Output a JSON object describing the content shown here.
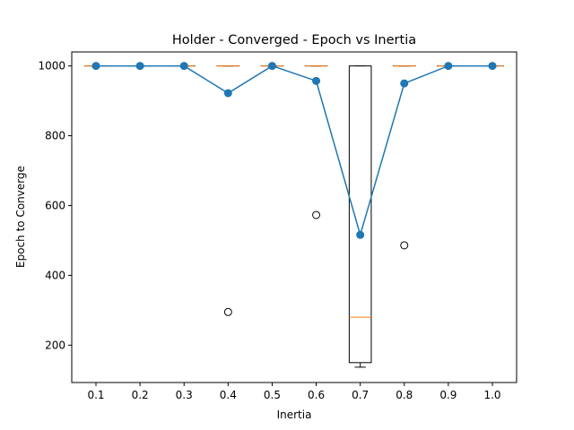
{
  "chart_data": {
    "type": "box",
    "title": "Holder - Converged - Epoch vs Inertia",
    "xlabel": "Inertia",
    "ylabel": "Epoch to Converge",
    "categories": [
      "0.1",
      "0.2",
      "0.3",
      "0.4",
      "0.5",
      "0.6",
      "0.7",
      "0.8",
      "0.9",
      "1.0"
    ],
    "ylim": [
      93,
      1040
    ],
    "yticks": [
      200,
      400,
      600,
      800,
      1000
    ],
    "grid": false,
    "colors": {
      "line": "#1f77b4",
      "median": "#ff7f0e",
      "box": "#000000"
    },
    "boxes": [
      {
        "q1": 1000,
        "median": 1000,
        "q3": 1000,
        "whislo": 1000,
        "whishi": 1000,
        "fliers": []
      },
      {
        "q1": 1000,
        "median": 1000,
        "q3": 1000,
        "whislo": 1000,
        "whishi": 1000,
        "fliers": []
      },
      {
        "q1": 1000,
        "median": 1000,
        "q3": 1000,
        "whislo": 1000,
        "whishi": 1000,
        "fliers": []
      },
      {
        "q1": 1000,
        "median": 1000,
        "q3": 1000,
        "whislo": 1000,
        "whishi": 1000,
        "fliers": [
          295
        ]
      },
      {
        "q1": 1000,
        "median": 1000,
        "q3": 1000,
        "whislo": 1000,
        "whishi": 1000,
        "fliers": []
      },
      {
        "q1": 1000,
        "median": 1000,
        "q3": 1000,
        "whislo": 1000,
        "whishi": 1000,
        "fliers": [
          573
        ]
      },
      {
        "q1": 150,
        "median": 280,
        "q3": 1000,
        "whislo": 137,
        "whishi": 1000,
        "fliers": []
      },
      {
        "q1": 1000,
        "median": 1000,
        "q3": 1000,
        "whislo": 1000,
        "whishi": 1000,
        "fliers": [
          486
        ]
      },
      {
        "q1": 1000,
        "median": 1000,
        "q3": 1000,
        "whislo": 1000,
        "whishi": 1000,
        "fliers": []
      },
      {
        "q1": 1000,
        "median": 1000,
        "q3": 1000,
        "whislo": 1000,
        "whishi": 1000,
        "fliers": []
      }
    ],
    "series": [
      {
        "values": [
          1000,
          1000,
          1000,
          922,
          1000,
          957,
          516,
          950,
          1000,
          1000
        ]
      }
    ]
  }
}
